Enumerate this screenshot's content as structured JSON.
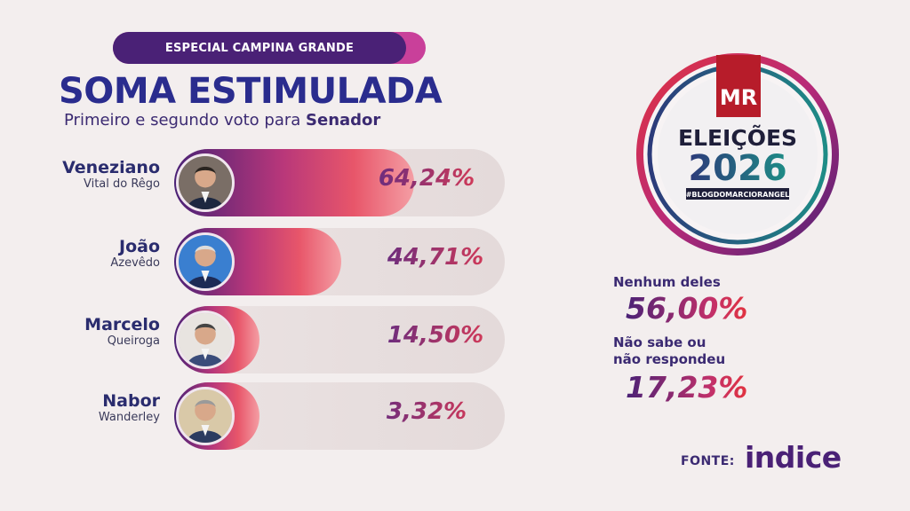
{
  "header": {
    "tag": "ESPECIAL CAMPINA GRANDE",
    "title": "SOMA ESTIMULADA",
    "subtitle_prefix": "Primeiro e segundo voto para ",
    "subtitle_bold": "Senador"
  },
  "chart_data": {
    "type": "bar",
    "categories": [
      "Veneziano Vital do Rêgo",
      "João Azevêdo",
      "Marcelo Queiroga",
      "Nabor Wanderley"
    ],
    "values": [
      64.24,
      44.71,
      14.5,
      3.32
    ],
    "value_labels": [
      "64,24%",
      "44,71%",
      "14,50%",
      "3,32%"
    ],
    "ylim": [
      0,
      100
    ],
    "title": "SOMA ESTIMULADA",
    "subtitle": "Primeiro e segundo voto para Senador",
    "xlabel": "",
    "ylabel": ""
  },
  "candidates": [
    {
      "name": "Veneziano",
      "surname": "Vital do Rêgo",
      "value": 64.24,
      "label": "64,24%",
      "photo": "candidate-photo"
    },
    {
      "name": "João",
      "surname": "Azevêdo",
      "value": 44.71,
      "label": "44,71%",
      "photo": "candidate-photo"
    },
    {
      "name": "Marcelo",
      "surname": "Queiroga",
      "value": 14.5,
      "label": "14,50%",
      "photo": "candidate-photo"
    },
    {
      "name": "Nabor",
      "surname": "Wanderley",
      "value": 3.32,
      "label": "3,32%",
      "photo": "candidate-photo"
    }
  ],
  "sidebar": {
    "none_label": "Nenhum deles",
    "none_value": "56,00%",
    "unsure_label_line1": "Não sabe ou",
    "unsure_label_line2": "não respondeu",
    "unsure_value": "17,23%"
  },
  "emblem": {
    "logo": "MR",
    "line1": "ELEIÇÕES",
    "line2": "2026",
    "hashtag": "#BLOGDOMARCIORANGEL"
  },
  "source": {
    "label": "FONTE:",
    "brand": "indice"
  },
  "colors": {
    "background": "#f3eeee",
    "navy": "#2a2c8e",
    "purple": "#4a2176",
    "magenta": "#c9409a",
    "red": "#e2333f",
    "teal": "#1e7f86"
  }
}
